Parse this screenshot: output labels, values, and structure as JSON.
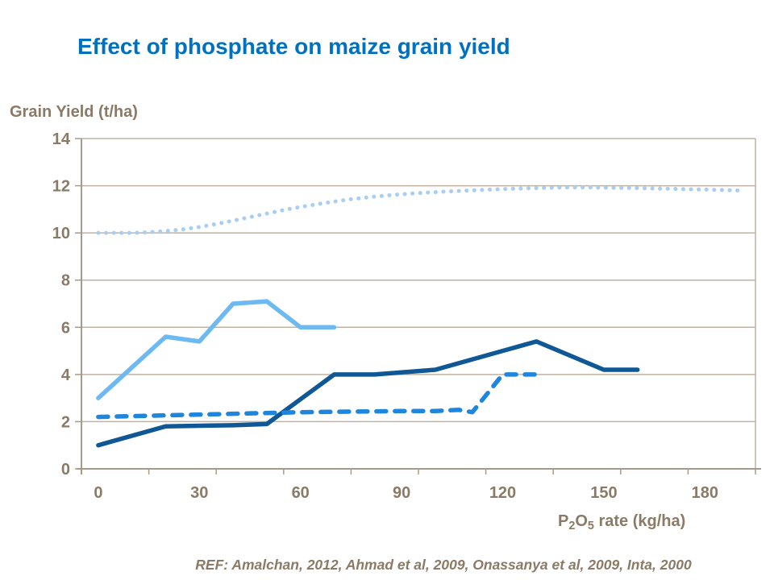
{
  "page": {
    "footer_ref": "REF: Amalchan, 2012, Ahmad et al, 2009, Onassanya et al, 2009, Inta, 2000"
  },
  "colors": {
    "title-blue": "#0070C0",
    "axis-text": "#8A7A66",
    "grid-line": "#BFB2A3",
    "axis-line": "#A79A8B"
  },
  "chart_data": {
    "type": "line",
    "title": "Effect of phosphate on maize grain yield",
    "ylabel": "Grain Yield (t/ha)",
    "xlabel_plain": "P2O5 rate (kg/ha)",
    "xlabel_parts": [
      {
        "text": "P",
        "sub": false
      },
      {
        "text": "2",
        "sub": true
      },
      {
        "text": "O",
        "sub": false
      },
      {
        "text": "5",
        "sub": true
      },
      {
        "text": " rate (kg/ha)",
        "sub": false
      }
    ],
    "x_axis": {
      "tick_labels": [
        0,
        30,
        60,
        90,
        120,
        150,
        180
      ],
      "xlim": [
        -5,
        195
      ],
      "tick_mark_count": 11,
      "grid": false
    },
    "y_axis": {
      "tick_labels": [
        0,
        2,
        4,
        6,
        8,
        10,
        12,
        14
      ],
      "ylim": [
        0,
        14
      ],
      "tick_step": 2,
      "grid": true
    },
    "legend": "none",
    "series": [
      {
        "id": "dotted-light-blue",
        "style": "dotted",
        "color": "#A9CEF2",
        "width": 5,
        "x": [
          0,
          5,
          10,
          15,
          20,
          25,
          30,
          35,
          40,
          45,
          50,
          55,
          60,
          65,
          70,
          75,
          80,
          85,
          90,
          95,
          100,
          105,
          110,
          115,
          120,
          125,
          130,
          135,
          140,
          145,
          150,
          155,
          160,
          165,
          170,
          175,
          180,
          185,
          190
        ],
        "y": [
          10.0,
          10.0,
          10.0,
          10.03,
          10.08,
          10.15,
          10.25,
          10.38,
          10.52,
          10.67,
          10.82,
          10.97,
          11.1,
          11.22,
          11.33,
          11.43,
          11.51,
          11.58,
          11.64,
          11.69,
          11.73,
          11.77,
          11.8,
          11.83,
          11.86,
          11.88,
          11.9,
          11.92,
          11.93,
          11.93,
          11.92,
          11.91,
          11.9,
          11.88,
          11.87,
          11.85,
          11.84,
          11.82,
          11.8
        ]
      },
      {
        "id": "solid-light-blue",
        "style": "solid",
        "color": "#6DBAF3",
        "width": 5.5,
        "x": [
          0,
          20,
          30,
          40,
          50,
          60,
          70
        ],
        "y": [
          3.0,
          5.6,
          5.4,
          7.0,
          7.1,
          6.0,
          6.0
        ]
      },
      {
        "id": "solid-dark-blue",
        "style": "solid",
        "color": "#0F5795",
        "width": 5.5,
        "x": [
          0,
          20,
          40,
          50,
          70,
          82,
          100,
          130,
          150,
          160
        ],
        "y": [
          1.0,
          1.8,
          1.85,
          1.9,
          4.0,
          4.0,
          4.2,
          5.4,
          4.2,
          4.2
        ]
      },
      {
        "id": "dashed-blue",
        "style": "dashed",
        "color": "#1E86DC",
        "width": 5.5,
        "x": [
          0,
          30,
          60,
          90,
          100,
          107,
          111,
          120,
          131
        ],
        "y": [
          2.2,
          2.3,
          2.4,
          2.45,
          2.45,
          2.5,
          2.4,
          4.0,
          4.0
        ]
      }
    ]
  }
}
